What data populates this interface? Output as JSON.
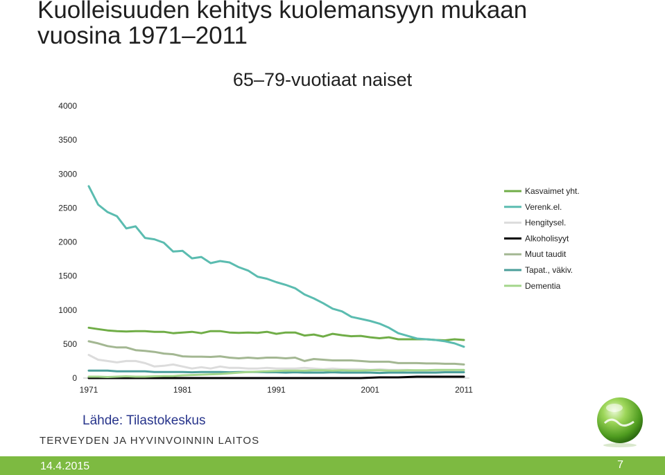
{
  "slide": {
    "title_line1": "Kuolleisuuden kehitys kuolemansyyn mukaan",
    "title_line2": "vuosina 1971–2011",
    "source": "Lähde: Tilastokeskus",
    "organization": "TERVEYDEN JA HYVINVOINNIN LAITOS",
    "date": "14.4.2015",
    "page_number": "7"
  },
  "colors": {
    "footer": "#7dba41",
    "source_text": "#27348b"
  },
  "chart_data": {
    "type": "line",
    "title": "65–79-vuotiaat naiset",
    "xlabel": "",
    "ylabel": "",
    "xlim": [
      1971,
      2011
    ],
    "ylim": [
      0,
      4000
    ],
    "x_ticks": [
      "1971",
      "1981",
      "1991",
      "2001",
      "2011"
    ],
    "y_ticks": [
      "0",
      "500",
      "1000",
      "1500",
      "2000",
      "2500",
      "3000",
      "3500",
      "4000"
    ],
    "grid": false,
    "legend_position": "right",
    "x": [
      1971,
      1972,
      1973,
      1974,
      1975,
      1976,
      1977,
      1978,
      1979,
      1980,
      1981,
      1982,
      1983,
      1984,
      1985,
      1986,
      1987,
      1988,
      1989,
      1990,
      1991,
      1992,
      1993,
      1994,
      1995,
      1996,
      1997,
      1998,
      1999,
      2000,
      2001,
      2002,
      2003,
      2004,
      2005,
      2006,
      2007,
      2008,
      2009,
      2010,
      2011
    ],
    "series": [
      {
        "name": "Kasvaimet yht.",
        "color": "#70ad47",
        "values": [
          740,
          720,
          700,
          690,
          685,
          690,
          690,
          680,
          680,
          660,
          670,
          680,
          660,
          690,
          690,
          670,
          665,
          670,
          665,
          680,
          650,
          670,
          670,
          625,
          640,
          610,
          650,
          630,
          615,
          620,
          600,
          585,
          600,
          570,
          570,
          570,
          570,
          560,
          555,
          570,
          560
        ]
      },
      {
        "name": "Verenk.el.",
        "color": "#5bbcb0",
        "values": [
          2820,
          2550,
          2440,
          2380,
          2200,
          2230,
          2060,
          2040,
          1990,
          1860,
          1870,
          1760,
          1780,
          1690,
          1720,
          1700,
          1630,
          1580,
          1490,
          1460,
          1410,
          1370,
          1320,
          1230,
          1170,
          1100,
          1020,
          980,
          900,
          870,
          840,
          800,
          740,
          660,
          620,
          580,
          570,
          560,
          540,
          510,
          460
        ]
      },
      {
        "name": "Hengitysel.",
        "color": "#dcdcdc",
        "values": [
          340,
          270,
          250,
          230,
          250,
          250,
          220,
          170,
          180,
          200,
          170,
          140,
          160,
          140,
          170,
          150,
          150,
          140,
          140,
          150,
          140,
          140,
          140,
          150,
          140,
          130,
          140,
          130,
          130,
          130,
          120,
          130,
          120,
          120,
          120,
          110,
          110,
          110,
          110,
          110,
          110
        ]
      },
      {
        "name": "Alkoholisyyt",
        "color": "#000000",
        "values": [
          0,
          0,
          0,
          0,
          0,
          0,
          0,
          0,
          0,
          0,
          0,
          0,
          0,
          0,
          0,
          0,
          0,
          0,
          0,
          0,
          0,
          0,
          0,
          0,
          0,
          0,
          0,
          0,
          0,
          0,
          5,
          10,
          10,
          10,
          15,
          20,
          20,
          20,
          20,
          20,
          20
        ]
      },
      {
        "name": "Muut taudit",
        "color": "#a3b792",
        "values": [
          540,
          510,
          470,
          450,
          450,
          410,
          400,
          385,
          360,
          350,
          320,
          315,
          315,
          310,
          320,
          300,
          290,
          300,
          290,
          300,
          300,
          290,
          300,
          250,
          280,
          270,
          260,
          260,
          260,
          250,
          240,
          240,
          240,
          220,
          220,
          220,
          215,
          215,
          210,
          210,
          200
        ]
      },
      {
        "name": "Tapat., väkiv.",
        "color": "#4a9e9a",
        "values": [
          110,
          110,
          110,
          100,
          100,
          100,
          100,
          90,
          90,
          90,
          90,
          85,
          90,
          90,
          90,
          85,
          90,
          90,
          90,
          85,
          85,
          80,
          85,
          80,
          80,
          80,
          85,
          80,
          80,
          80,
          80,
          75,
          80,
          80,
          80,
          80,
          80,
          80,
          85,
          85,
          85
        ]
      },
      {
        "name": "Dementia",
        "color": "#a4d68c",
        "values": [
          20,
          20,
          15,
          20,
          25,
          20,
          20,
          25,
          30,
          30,
          40,
          45,
          50,
          55,
          60,
          70,
          80,
          90,
          95,
          100,
          105,
          110,
          110,
          110,
          115,
          115,
          110,
          115,
          110,
          110,
          115,
          115,
          110,
          110,
          115,
          115,
          115,
          120,
          120,
          120,
          120
        ]
      }
    ]
  }
}
